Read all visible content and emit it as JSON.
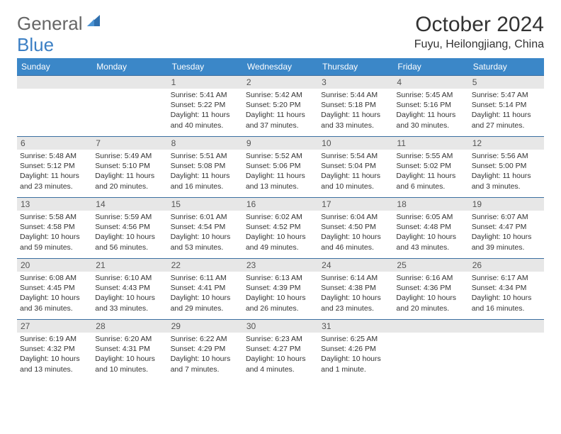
{
  "logo": {
    "text1": "General",
    "text2": "Blue",
    "accent": "#3b87c8"
  },
  "title": "October 2024",
  "location": "Fuyu, Heilongjiang, China",
  "colors": {
    "header_bg": "#3b87c8",
    "header_text": "#ffffff",
    "daynum_bg": "#e7e7e7",
    "border": "#3b6fa0",
    "text": "#333333"
  },
  "day_names": [
    "Sunday",
    "Monday",
    "Tuesday",
    "Wednesday",
    "Thursday",
    "Friday",
    "Saturday"
  ],
  "blanks_before": 2,
  "days": [
    {
      "n": 1,
      "sunrise": "5:41 AM",
      "sunset": "5:22 PM",
      "daylight": "11 hours and 40 minutes."
    },
    {
      "n": 2,
      "sunrise": "5:42 AM",
      "sunset": "5:20 PM",
      "daylight": "11 hours and 37 minutes."
    },
    {
      "n": 3,
      "sunrise": "5:44 AM",
      "sunset": "5:18 PM",
      "daylight": "11 hours and 33 minutes."
    },
    {
      "n": 4,
      "sunrise": "5:45 AM",
      "sunset": "5:16 PM",
      "daylight": "11 hours and 30 minutes."
    },
    {
      "n": 5,
      "sunrise": "5:47 AM",
      "sunset": "5:14 PM",
      "daylight": "11 hours and 27 minutes."
    },
    {
      "n": 6,
      "sunrise": "5:48 AM",
      "sunset": "5:12 PM",
      "daylight": "11 hours and 23 minutes."
    },
    {
      "n": 7,
      "sunrise": "5:49 AM",
      "sunset": "5:10 PM",
      "daylight": "11 hours and 20 minutes."
    },
    {
      "n": 8,
      "sunrise": "5:51 AM",
      "sunset": "5:08 PM",
      "daylight": "11 hours and 16 minutes."
    },
    {
      "n": 9,
      "sunrise": "5:52 AM",
      "sunset": "5:06 PM",
      "daylight": "11 hours and 13 minutes."
    },
    {
      "n": 10,
      "sunrise": "5:54 AM",
      "sunset": "5:04 PM",
      "daylight": "11 hours and 10 minutes."
    },
    {
      "n": 11,
      "sunrise": "5:55 AM",
      "sunset": "5:02 PM",
      "daylight": "11 hours and 6 minutes."
    },
    {
      "n": 12,
      "sunrise": "5:56 AM",
      "sunset": "5:00 PM",
      "daylight": "11 hours and 3 minutes."
    },
    {
      "n": 13,
      "sunrise": "5:58 AM",
      "sunset": "4:58 PM",
      "daylight": "10 hours and 59 minutes."
    },
    {
      "n": 14,
      "sunrise": "5:59 AM",
      "sunset": "4:56 PM",
      "daylight": "10 hours and 56 minutes."
    },
    {
      "n": 15,
      "sunrise": "6:01 AM",
      "sunset": "4:54 PM",
      "daylight": "10 hours and 53 minutes."
    },
    {
      "n": 16,
      "sunrise": "6:02 AM",
      "sunset": "4:52 PM",
      "daylight": "10 hours and 49 minutes."
    },
    {
      "n": 17,
      "sunrise": "6:04 AM",
      "sunset": "4:50 PM",
      "daylight": "10 hours and 46 minutes."
    },
    {
      "n": 18,
      "sunrise": "6:05 AM",
      "sunset": "4:48 PM",
      "daylight": "10 hours and 43 minutes."
    },
    {
      "n": 19,
      "sunrise": "6:07 AM",
      "sunset": "4:47 PM",
      "daylight": "10 hours and 39 minutes."
    },
    {
      "n": 20,
      "sunrise": "6:08 AM",
      "sunset": "4:45 PM",
      "daylight": "10 hours and 36 minutes."
    },
    {
      "n": 21,
      "sunrise": "6:10 AM",
      "sunset": "4:43 PM",
      "daylight": "10 hours and 33 minutes."
    },
    {
      "n": 22,
      "sunrise": "6:11 AM",
      "sunset": "4:41 PM",
      "daylight": "10 hours and 29 minutes."
    },
    {
      "n": 23,
      "sunrise": "6:13 AM",
      "sunset": "4:39 PM",
      "daylight": "10 hours and 26 minutes."
    },
    {
      "n": 24,
      "sunrise": "6:14 AM",
      "sunset": "4:38 PM",
      "daylight": "10 hours and 23 minutes."
    },
    {
      "n": 25,
      "sunrise": "6:16 AM",
      "sunset": "4:36 PM",
      "daylight": "10 hours and 20 minutes."
    },
    {
      "n": 26,
      "sunrise": "6:17 AM",
      "sunset": "4:34 PM",
      "daylight": "10 hours and 16 minutes."
    },
    {
      "n": 27,
      "sunrise": "6:19 AM",
      "sunset": "4:32 PM",
      "daylight": "10 hours and 13 minutes."
    },
    {
      "n": 28,
      "sunrise": "6:20 AM",
      "sunset": "4:31 PM",
      "daylight": "10 hours and 10 minutes."
    },
    {
      "n": 29,
      "sunrise": "6:22 AM",
      "sunset": "4:29 PM",
      "daylight": "10 hours and 7 minutes."
    },
    {
      "n": 30,
      "sunrise": "6:23 AM",
      "sunset": "4:27 PM",
      "daylight": "10 hours and 4 minutes."
    },
    {
      "n": 31,
      "sunrise": "6:25 AM",
      "sunset": "4:26 PM",
      "daylight": "10 hours and 1 minute."
    }
  ],
  "blanks_after": 2
}
